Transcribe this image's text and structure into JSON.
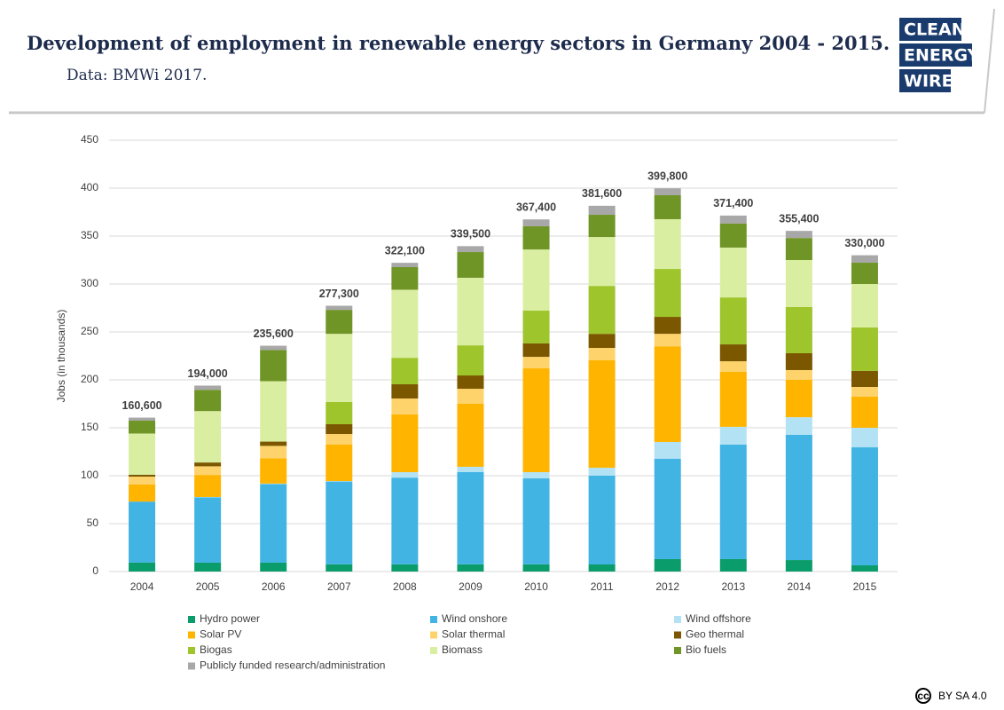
{
  "logo": [
    "CLEAN",
    "ENERGY",
    "WIRE"
  ],
  "license_icon": "cc",
  "license": "BY SA 4.0",
  "chart_data": {
    "type": "stacked_bar",
    "title": "Development of employment in renewable energy sectors in Germany 2004 - 2015.",
    "subtitle": "Data: BMWi 2017.",
    "y_label": "Jobs (in thousands)",
    "categories": [
      "2004",
      "2005",
      "2006",
      "2007",
      "2008",
      "2009",
      "2010",
      "2011",
      "2012",
      "2013",
      "2014",
      "2015"
    ],
    "ylim": [
      0,
      450
    ],
    "yticks": [
      0,
      50,
      100,
      150,
      200,
      250,
      300,
      350,
      400,
      450
    ],
    "grid": true,
    "legend": "bottom",
    "totals": [
      {
        "value": 160.6,
        "label": "160,600"
      },
      {
        "value": 194.0,
        "label": "194,000"
      },
      {
        "value": 235.6,
        "label": "235,600"
      },
      {
        "value": 277.3,
        "label": "277,300"
      },
      {
        "value": 322.1,
        "label": "322,100"
      },
      {
        "value": 339.5,
        "label": "339,500"
      },
      {
        "value": 367.4,
        "label": "367,400"
      },
      {
        "value": 381.6,
        "label": "381,600"
      },
      {
        "value": 399.8,
        "label": "399,800"
      },
      {
        "value": 371.4,
        "label": "371,400"
      },
      {
        "value": 355.4,
        "label": "355,400"
      },
      {
        "value": 330.0,
        "label": "330,000"
      }
    ],
    "series": [
      {
        "name": "Hydro power",
        "color": "#0b9c6c",
        "values": [
          9.5,
          9.3,
          9.3,
          7.6,
          7.6,
          7.6,
          7.6,
          7.4,
          13,
          13,
          12,
          6.5
        ]
      },
      {
        "name": "Wind onshore",
        "color": "#41b4e4",
        "values": [
          63.5,
          68,
          82,
          86.3,
          90.4,
          96.1,
          89.6,
          92.6,
          104.6,
          119.4,
          130.6,
          123.1
        ]
      },
      {
        "name": "Wind offshore",
        "color": "#b4e2f5",
        "values": [
          0,
          0.5,
          0.5,
          0.5,
          5.7,
          5.6,
          6.5,
          8.3,
          17.6,
          18.6,
          18.4,
          20.4
        ]
      },
      {
        "name": "Solar PV",
        "color": "#ffb400",
        "values": [
          18,
          23,
          26.3,
          38,
          60.3,
          65.7,
          108.3,
          112.1,
          99.8,
          57.3,
          39,
          32.4
        ]
      },
      {
        "name": "Solar thermal",
        "color": "#ffd36b",
        "values": [
          8,
          9,
          13,
          11.1,
          16.5,
          15.7,
          12,
          12.9,
          13,
          11.1,
          10.2,
          10.2
        ]
      },
      {
        "name": "Geo thermal",
        "color": "#7b5800",
        "values": [
          2,
          4,
          4.5,
          10.2,
          14.9,
          13.9,
          14,
          14.7,
          17.7,
          17.6,
          17.6,
          16.7
        ]
      },
      {
        "name": "Biogas",
        "color": "#9ec52b",
        "values": [
          0,
          0,
          0,
          23.2,
          27.6,
          31.4,
          34.2,
          50,
          50,
          49,
          48.2,
          45.3
        ]
      },
      {
        "name": "Biomass",
        "color": "#daeea2",
        "values": [
          43,
          53.6,
          63,
          71.1,
          71,
          70.5,
          63.8,
          51,
          51.9,
          52,
          49,
          45.4
        ]
      },
      {
        "name": "Bio fuels",
        "color": "#6f9526",
        "values": [
          13.4,
          22.2,
          32.5,
          25,
          23.6,
          26.8,
          24.2,
          23.2,
          25,
          25,
          23,
          22.2
        ]
      },
      {
        "name": "Publicly funded research/administration",
        "color": "#a8a8a8",
        "values": [
          3.2,
          4.4,
          4.5,
          4.3,
          4.5,
          6.2,
          7.2,
          9.4,
          7.2,
          8.4,
          7.4,
          7.8
        ]
      }
    ]
  }
}
